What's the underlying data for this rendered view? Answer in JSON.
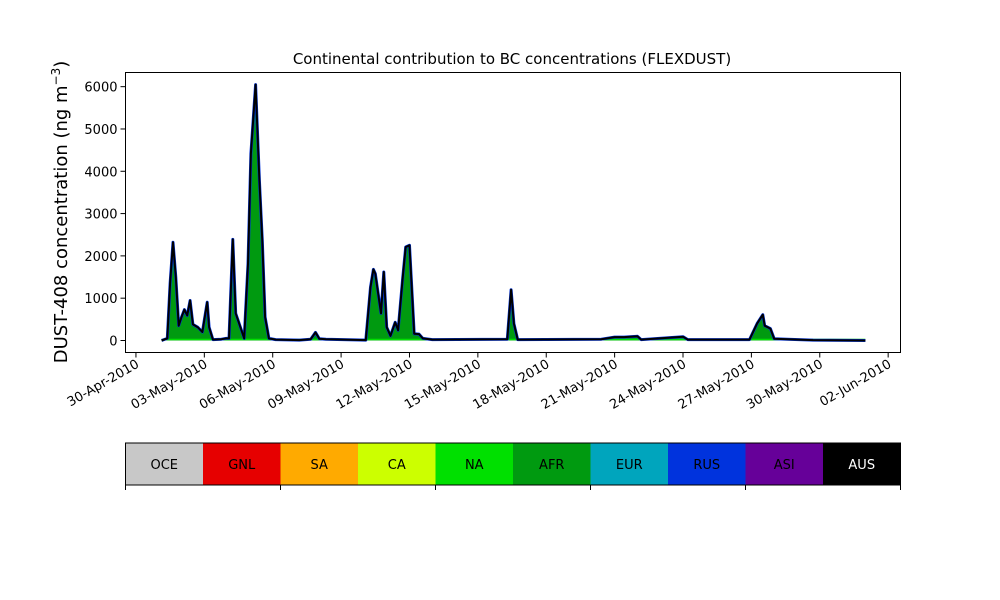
{
  "chart_data": {
    "type": "area",
    "title": "Continental contribution to BC concentrations (FLEXDUST)",
    "ylabel": "DUST-408 concentration (ng m",
    "ylabel_sup": "−3",
    "ylabel_close": ")",
    "xlabel": "",
    "xlim": [
      "2010-04-29T13:00",
      "2010-06-02T13:00"
    ],
    "ylim": [
      -284,
      6335
    ],
    "grid": false,
    "x_ticks": [
      "2010-04-30",
      "2010-05-03",
      "2010-05-06",
      "2010-05-09",
      "2010-05-12",
      "2010-05-15",
      "2010-05-18",
      "2010-05-21",
      "2010-05-24",
      "2010-05-27",
      "2010-05-30",
      "2010-06-02"
    ],
    "x_tick_labels": [
      "30-Apr-2010",
      "03-May-2010",
      "06-May-2010",
      "09-May-2010",
      "12-May-2010",
      "15-May-2010",
      "18-May-2010",
      "21-May-2010",
      "24-May-2010",
      "27-May-2010",
      "30-May-2010",
      "02-Jun-2010"
    ],
    "y_ticks": [
      0,
      1000,
      2000,
      3000,
      4000,
      5000,
      6000
    ],
    "y_tick_labels": [
      "0",
      "1000",
      "2000",
      "3000",
      "4000",
      "5000",
      "6000"
    ],
    "series": [
      {
        "name": "AFR",
        "color": "#009a10",
        "x": [
          "2010-05-01T03:00",
          "2010-05-01T09:00",
          "2010-05-01T12:00",
          "2010-05-01T15:00",
          "2010-05-01T18:00",
          "2010-05-01T21:00",
          "2010-05-02T00:00",
          "2010-05-02T03:00",
          "2010-05-02T06:00",
          "2010-05-02T09:00",
          "2010-05-02T12:00",
          "2010-05-02T17:00",
          "2010-05-02T22:00",
          "2010-05-03T03:00",
          "2010-05-03T05:00",
          "2010-05-03T09:00",
          "2010-05-03T18:00",
          "2010-05-03T23:00",
          "2010-05-04T02:00",
          "2010-05-04T06:00",
          "2010-05-04T09:00",
          "2010-05-04T14:00",
          "2010-05-04T18:00",
          "2010-05-04T22:00",
          "2010-05-05T01:00",
          "2010-05-05T06:00",
          "2010-05-05T10:00",
          "2010-05-05T13:00",
          "2010-05-05T16:00",
          "2010-05-05T20:00",
          "2010-05-06T03:00",
          "2010-05-07T04:00",
          "2010-05-07T16:00",
          "2010-05-07T21:00",
          "2010-05-08T01:00",
          "2010-05-08T08:00",
          "2010-05-10T02:00",
          "2010-05-10T07:00",
          "2010-05-10T10:00",
          "2010-05-10T12:00",
          "2010-05-10T18:00",
          "2010-05-10T21:00",
          "2010-05-11T00:00",
          "2010-05-11T04:00",
          "2010-05-11T09:00",
          "2010-05-11T12:00",
          "2010-05-11T17:00",
          "2010-05-11T20:00",
          "2010-05-12T00:00",
          "2010-05-12T05:00",
          "2010-05-12T10:00",
          "2010-05-12T14:00",
          "2010-05-13T00:00",
          "2010-05-16T07:00",
          "2010-05-16T11:00",
          "2010-05-16T14:00",
          "2010-05-16T18:00",
          "2010-05-20T10:00",
          "2010-05-21T00:00",
          "2010-05-21T10:00",
          "2010-05-22T00:00",
          "2010-05-22T04:00",
          "2010-05-24T00:00",
          "2010-05-24T05:00",
          "2010-05-26T22:00",
          "2010-05-27T06:00",
          "2010-05-27T12:00",
          "2010-05-27T14:00",
          "2010-05-27T20:00",
          "2010-05-28T00:00",
          "2010-05-28T14:00",
          "2010-05-29T17:00",
          "2010-06-01T00:00"
        ],
        "values": [
          0,
          50,
          1350,
          2320,
          1500,
          350,
          550,
          730,
          590,
          945,
          380,
          315,
          200,
          905,
          315,
          20,
          30,
          50,
          50,
          2390,
          640,
          315,
          50,
          1810,
          4420,
          6050,
          3780,
          2360,
          550,
          50,
          20,
          10,
          30,
          190,
          40,
          30,
          10,
          1260,
          1680,
          1580,
          640,
          1620,
          315,
          110,
          430,
          240,
          1500,
          2210,
          2250,
          160,
          150,
          50,
          20,
          30,
          1200,
          400,
          20,
          30,
          80,
          80,
          100,
          20,
          90,
          20,
          20,
          400,
          610,
          350,
          280,
          40,
          30,
          10,
          0
        ]
      }
    ],
    "colorbar": {
      "labels": [
        "OCE",
        "GNL",
        "SA",
        "CA",
        "NA",
        "AFR",
        "EUR",
        "RUS",
        "ASI",
        "AUS"
      ],
      "colors": [
        "#c8c8c8",
        "#e60000",
        "#ffaa00",
        "#ccff00",
        "#00e000",
        "#009a10",
        "#00a5bd",
        "#0033dd",
        "#660099",
        "#000000"
      ]
    }
  }
}
